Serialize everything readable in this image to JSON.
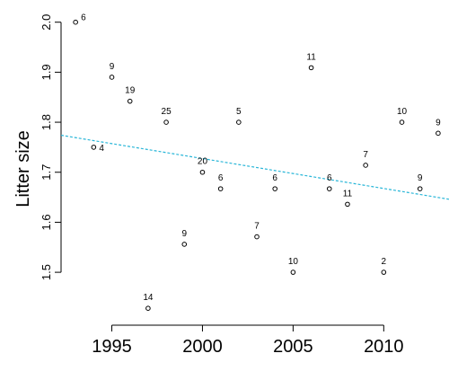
{
  "chart_data": {
    "type": "scatter",
    "title": "",
    "xlabel": "",
    "ylabel": "Litter size",
    "xlim": [
      1992.2,
      2013.6
    ],
    "ylim": [
      1.405,
      2.03
    ],
    "x_ticks": [
      1995,
      2000,
      2005,
      2010
    ],
    "x_tick_labels": [
      "1995",
      "2000",
      "2005",
      "2010"
    ],
    "y_ticks": [
      1.5,
      1.6,
      1.7,
      1.8,
      1.9,
      2.0
    ],
    "y_tick_labels": [
      "1.5",
      "1.6",
      "1.7",
      "1.8",
      "1.9",
      "2.0"
    ],
    "grid": false,
    "points": [
      {
        "x": 1993,
        "y": 2.0,
        "label": "6"
      },
      {
        "x": 1994,
        "y": 1.75,
        "label": "4"
      },
      {
        "x": 1995,
        "y": 1.89,
        "label": "9"
      },
      {
        "x": 1996,
        "y": 1.842,
        "label": "19"
      },
      {
        "x": 1997,
        "y": 1.428,
        "label": "14"
      },
      {
        "x": 1998,
        "y": 1.8,
        "label": "25"
      },
      {
        "x": 1999,
        "y": 1.556,
        "label": "9"
      },
      {
        "x": 2000,
        "y": 1.7,
        "label": "20"
      },
      {
        "x": 2001,
        "y": 1.667,
        "label": "6"
      },
      {
        "x": 2002,
        "y": 1.8,
        "label": "5"
      },
      {
        "x": 2003,
        "y": 1.571,
        "label": "7"
      },
      {
        "x": 2004,
        "y": 1.667,
        "label": "6"
      },
      {
        "x": 2005,
        "y": 1.5,
        "label": "10"
      },
      {
        "x": 2006,
        "y": 1.909,
        "label": "11"
      },
      {
        "x": 2007,
        "y": 1.667,
        "label": "6"
      },
      {
        "x": 2008,
        "y": 1.636,
        "label": "11"
      },
      {
        "x": 2009,
        "y": 1.714,
        "label": "7"
      },
      {
        "x": 2010,
        "y": 1.5,
        "label": "2"
      },
      {
        "x": 2011,
        "y": 1.8,
        "label": "10"
      },
      {
        "x": 2012,
        "y": 1.667,
        "label": "9"
      },
      {
        "x": 2013,
        "y": 1.778,
        "label": "9"
      }
    ],
    "trend_line": {
      "x": [
        1992.2,
        2013.6
      ],
      "y": [
        1.774,
        1.646
      ],
      "color": "#29b6d8",
      "style": "dashed"
    },
    "point_color": "#000000"
  }
}
